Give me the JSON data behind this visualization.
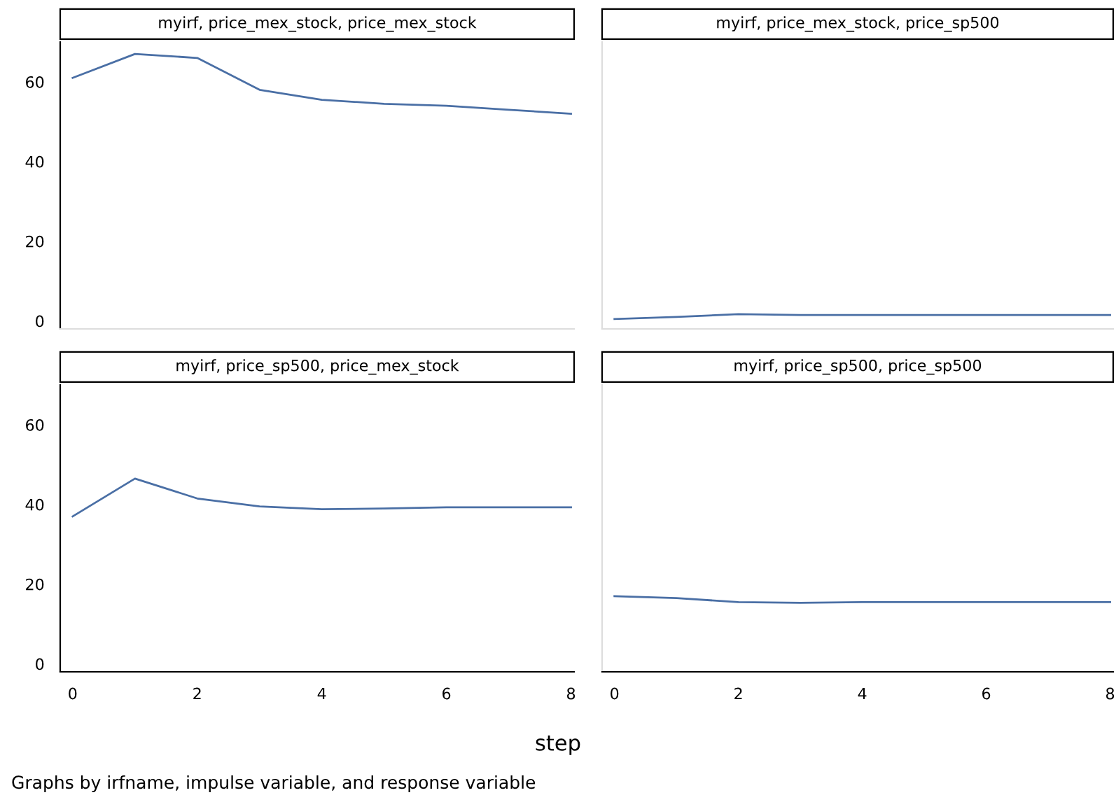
{
  "chart_data": [
    {
      "type": "line",
      "title": "myirf, price_mex_stock, price_mex_stock",
      "x": [
        0,
        1,
        2,
        3,
        4,
        5,
        6,
        7,
        8
      ],
      "series": [
        {
          "color": "#4a6fa5",
          "values": [
            61,
            67,
            66,
            58,
            55.5,
            54.5,
            54,
            53,
            52
          ]
        }
      ],
      "xlim": [
        -0.2,
        8.05
      ],
      "xticks": [
        0,
        2,
        4,
        6,
        8
      ],
      "ylim": [
        -2,
        70
      ],
      "yticks": [
        0,
        20,
        40,
        60
      ],
      "tick_labels": "y",
      "grid": false,
      "legend": false
    },
    {
      "type": "line",
      "title": "myirf, price_mex_stock, price_sp500",
      "x": [
        0,
        1,
        2,
        3,
        4,
        5,
        6,
        7,
        8
      ],
      "series": [
        {
          "color": "#4a6fa5",
          "values": [
            0.5,
            1,
            1.7,
            1.5,
            1.5,
            1.5,
            1.5,
            1.5,
            1.5
          ]
        }
      ],
      "xlim": [
        -0.2,
        8.05
      ],
      "xticks": [
        0,
        2,
        4,
        6,
        8
      ],
      "ylim": [
        -2,
        70
      ],
      "yticks": [
        0,
        20,
        40,
        60
      ],
      "tick_labels": false,
      "grid": false,
      "legend": false
    },
    {
      "type": "line",
      "title": "myirf, price_sp500, price_mex_stock",
      "xlabel": "step",
      "annotations": [
        "Graphs by irfname, impulse variable, and response variable"
      ],
      "x": [
        0,
        1,
        2,
        3,
        4,
        5,
        6,
        7,
        8
      ],
      "series": [
        {
          "color": "#4a6fa5",
          "values": [
            37,
            46.5,
            41.5,
            39.5,
            38.8,
            39,
            39.3,
            39.3,
            39.3
          ]
        }
      ],
      "xlim": [
        -0.2,
        8.05
      ],
      "xticks": [
        0,
        2,
        4,
        6,
        8
      ],
      "ylim": [
        -2,
        70
      ],
      "yticks": [
        0,
        20,
        40,
        60
      ],
      "grid": false,
      "legend": false
    },
    {
      "type": "line",
      "title": "myirf, price_sp500, price_sp500",
      "x": [
        0,
        1,
        2,
        3,
        4,
        5,
        6,
        7,
        8
      ],
      "series": [
        {
          "color": "#4a6fa5",
          "values": [
            17,
            16.5,
            15.5,
            15.3,
            15.5,
            15.5,
            15.5,
            15.5,
            15.5
          ]
        }
      ],
      "xlim": [
        -0.2,
        8.05
      ],
      "xticks": [
        0,
        2,
        4,
        6,
        8
      ],
      "ylim": [
        -2,
        70
      ],
      "yticks": [
        0,
        20,
        40,
        60
      ],
      "tick_labels": "x",
      "grid": false,
      "legend": false
    }
  ]
}
